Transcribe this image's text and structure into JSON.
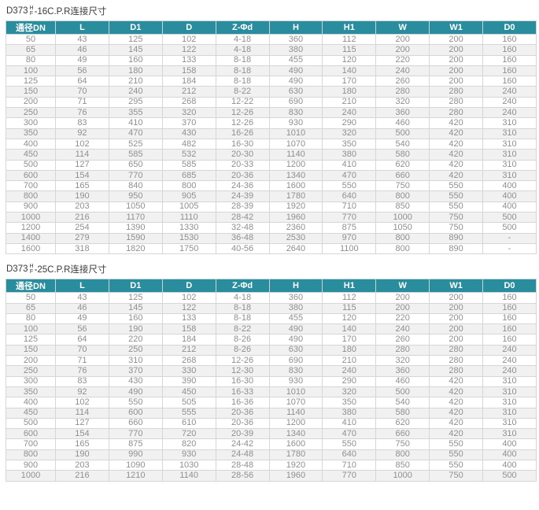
{
  "colors": {
    "header_bg": "#2a8d9e",
    "header_text": "#ffffff",
    "cell_text": "#8f8f8f",
    "row_alt_bg": "#f1f1f1",
    "border": "#d6d6d6",
    "title_text": "#3a3a3a",
    "page_bg": "#ffffff"
  },
  "tables": [
    {
      "title": {
        "model": "D373",
        "sup": "H",
        "sub": "F",
        "suffix": "-16C.P.R连接尺寸"
      },
      "headers": [
        "通径DN",
        "L",
        "D1",
        "D",
        "Z-Φd",
        "H",
        "H1",
        "W",
        "W1",
        "D0"
      ],
      "rows": [
        [
          "50",
          "43",
          "125",
          "102",
          "4-18",
          "360",
          "112",
          "200",
          "200",
          "160"
        ],
        [
          "65",
          "46",
          "145",
          "122",
          "4-18",
          "380",
          "115",
          "200",
          "200",
          "160"
        ],
        [
          "80",
          "49",
          "160",
          "133",
          "8-18",
          "455",
          "120",
          "220",
          "200",
          "160"
        ],
        [
          "100",
          "56",
          "180",
          "158",
          "8-18",
          "490",
          "140",
          "240",
          "200",
          "160"
        ],
        [
          "125",
          "64",
          "210",
          "184",
          "8-18",
          "490",
          "170",
          "260",
          "200",
          "160"
        ],
        [
          "150",
          "70",
          "240",
          "212",
          "8-22",
          "630",
          "180",
          "280",
          "280",
          "240"
        ],
        [
          "200",
          "71",
          "295",
          "268",
          "12-22",
          "690",
          "210",
          "320",
          "280",
          "240"
        ],
        [
          "250",
          "76",
          "355",
          "320",
          "12-26",
          "830",
          "240",
          "360",
          "280",
          "240"
        ],
        [
          "300",
          "83",
          "410",
          "370",
          "12-26",
          "930",
          "290",
          "460",
          "420",
          "310"
        ],
        [
          "350",
          "92",
          "470",
          "430",
          "16-26",
          "1010",
          "320",
          "500",
          "420",
          "310"
        ],
        [
          "400",
          "102",
          "525",
          "482",
          "16-30",
          "1070",
          "350",
          "540",
          "420",
          "310"
        ],
        [
          "450",
          "114",
          "585",
          "532",
          "20-30",
          "1140",
          "380",
          "580",
          "420",
          "310"
        ],
        [
          "500",
          "127",
          "650",
          "585",
          "20-33",
          "1200",
          "410",
          "620",
          "420",
          "310"
        ],
        [
          "600",
          "154",
          "770",
          "685",
          "20-36",
          "1340",
          "470",
          "660",
          "420",
          "310"
        ],
        [
          "700",
          "165",
          "840",
          "800",
          "24-36",
          "1600",
          "550",
          "750",
          "550",
          "400"
        ],
        [
          "800",
          "190",
          "950",
          "905",
          "24-39",
          "1780",
          "640",
          "800",
          "550",
          "400"
        ],
        [
          "900",
          "203",
          "1050",
          "1005",
          "28-39",
          "1920",
          "710",
          "850",
          "550",
          "400"
        ],
        [
          "1000",
          "216",
          "1170",
          "1110",
          "28-42",
          "1960",
          "770",
          "1000",
          "750",
          "500"
        ],
        [
          "1200",
          "254",
          "1390",
          "1330",
          "32-48",
          "2360",
          "875",
          "1050",
          "750",
          "500"
        ],
        [
          "1400",
          "279",
          "1590",
          "1530",
          "36-48",
          "2530",
          "970",
          "800",
          "890",
          "-"
        ],
        [
          "1600",
          "318",
          "1820",
          "1750",
          "40-56",
          "2640",
          "1100",
          "800",
          "890",
          "-"
        ]
      ]
    },
    {
      "title": {
        "model": "D373",
        "sup": "H",
        "sub": "F",
        "suffix": "-25C.P.R连接尺寸"
      },
      "headers": [
        "通径DN",
        "L",
        "D1",
        "D",
        "Z-Φd",
        "H",
        "H1",
        "W",
        "W1",
        "D0"
      ],
      "rows": [
        [
          "50",
          "43",
          "125",
          "102",
          "4-18",
          "360",
          "112",
          "200",
          "200",
          "160"
        ],
        [
          "65",
          "46",
          "145",
          "122",
          "8-18",
          "380",
          "115",
          "200",
          "200",
          "160"
        ],
        [
          "80",
          "49",
          "160",
          "133",
          "8-18",
          "455",
          "120",
          "220",
          "200",
          "160"
        ],
        [
          "100",
          "56",
          "190",
          "158",
          "8-22",
          "490",
          "140",
          "240",
          "200",
          "160"
        ],
        [
          "125",
          "64",
          "220",
          "184",
          "8-26",
          "490",
          "170",
          "260",
          "200",
          "160"
        ],
        [
          "150",
          "70",
          "250",
          "212",
          "8-26",
          "630",
          "180",
          "280",
          "280",
          "240"
        ],
        [
          "200",
          "71",
          "310",
          "268",
          "12-26",
          "690",
          "210",
          "320",
          "280",
          "240"
        ],
        [
          "250",
          "76",
          "370",
          "330",
          "12-30",
          "830",
          "240",
          "360",
          "280",
          "240"
        ],
        [
          "300",
          "83",
          "430",
          "390",
          "16-30",
          "930",
          "290",
          "460",
          "420",
          "310"
        ],
        [
          "350",
          "92",
          "490",
          "450",
          "16-33",
          "1010",
          "320",
          "500",
          "420",
          "310"
        ],
        [
          "400",
          "102",
          "550",
          "505",
          "16-36",
          "1070",
          "350",
          "540",
          "420",
          "310"
        ],
        [
          "450",
          "114",
          "600",
          "555",
          "20-36",
          "1140",
          "380",
          "580",
          "420",
          "310"
        ],
        [
          "500",
          "127",
          "660",
          "610",
          "20-36",
          "1200",
          "410",
          "620",
          "420",
          "310"
        ],
        [
          "600",
          "154",
          "770",
          "720",
          "20-39",
          "1340",
          "470",
          "660",
          "420",
          "310"
        ],
        [
          "700",
          "165",
          "875",
          "820",
          "24-42",
          "1600",
          "550",
          "750",
          "550",
          "400"
        ],
        [
          "800",
          "190",
          "990",
          "930",
          "24-48",
          "1780",
          "640",
          "800",
          "550",
          "400"
        ],
        [
          "900",
          "203",
          "1090",
          "1030",
          "28-48",
          "1920",
          "710",
          "850",
          "550",
          "400"
        ],
        [
          "1000",
          "216",
          "1210",
          "1140",
          "28-56",
          "1960",
          "770",
          "1000",
          "750",
          "500"
        ]
      ]
    }
  ]
}
